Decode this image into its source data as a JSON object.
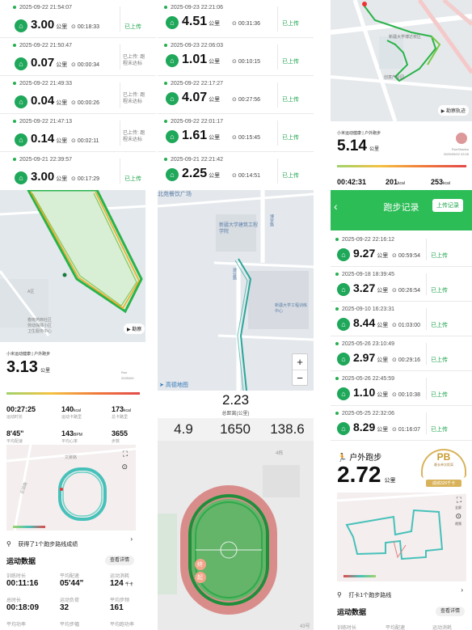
{
  "panel1": {
    "records": [
      {
        "datetime": "2025-09-22 21:54:07",
        "distance": "3.00",
        "unit": "公里",
        "duration": "00:18:33",
        "status": "已上传"
      },
      {
        "datetime": "2025-09-22 21:50:47",
        "distance": "0.07",
        "unit": "公里",
        "duration": "00:00:34",
        "status": "已上传: 跑程未达标"
      },
      {
        "datetime": "2025-09-22 21:49:33",
        "distance": "0.04",
        "unit": "公里",
        "duration": "00:00:26",
        "status": "已上传: 跑程未达标"
      },
      {
        "datetime": "2025-09-22 21:47:13",
        "distance": "0.14",
        "unit": "公里",
        "duration": "00:02:11",
        "status": "已上传: 跑程未达标"
      },
      {
        "datetime": "2025-09-21 22:39:57",
        "distance": "3.00",
        "unit": "公里",
        "duration": "00:17:29",
        "status": "已上传"
      }
    ]
  },
  "panel2": {
    "records": [
      {
        "datetime": "2025-09-23 22:21:06",
        "distance": "4.51",
        "unit": "公里",
        "duration": "00:31:36",
        "status": "已上传"
      },
      {
        "datetime": "2025-09-23 22:06:03",
        "distance": "1.01",
        "unit": "公里",
        "duration": "00:10:15",
        "status": "已上传"
      },
      {
        "datetime": "2025-09-22 22:17:27",
        "distance": "4.07",
        "unit": "公里",
        "duration": "00:27:56",
        "status": "已上传"
      },
      {
        "datetime": "2025-09-22 22:01:17",
        "distance": "1.61",
        "unit": "公里",
        "duration": "00:15:45",
        "status": "已上传"
      },
      {
        "datetime": "2025-09-21 22:21:42",
        "distance": "2.25",
        "unit": "公里",
        "duration": "00:14:51",
        "status": "已上传"
      }
    ]
  },
  "panel3": {
    "map_label": "新疆大学博达校区",
    "map_label2": "创意产业园",
    "track_button": "勘察轨迹",
    "app_name": "小米运动健康 | 户外跑步",
    "distance": "5.14",
    "unit": "公里",
    "user_name": "RunShadou",
    "user_date": "2025/09/22 22:05",
    "metrics": [
      {
        "value": "00:42:31",
        "label": ""
      },
      {
        "value": "201",
        "unit": "kcal",
        "label": ""
      },
      {
        "value": "253",
        "unit": "kcal",
        "label": ""
      }
    ]
  },
  "panel4": {
    "map_labels": [
      "春雨苑西社区",
      "劳动保障小区",
      "卫生服务中心",
      "A区"
    ],
    "track_button": "勘察",
    "app_name": "小米运动健康 | 户外跑步",
    "distance": "3.13",
    "unit": "公里",
    "user_name": "Ron",
    "user_date": "2025/09/",
    "metrics": [
      {
        "value": "00:27:25",
        "label": "运动时长"
      },
      {
        "value": "140",
        "unit": "kcal",
        "label": "运动卡路里"
      },
      {
        "value": "173",
        "unit": "kcal",
        "label": "总卡路里"
      },
      {
        "value": "8'45\"",
        "label": "平均配速"
      },
      {
        "value": "143",
        "unit": "BPM",
        "label": "平均心率"
      },
      {
        "value": "3655",
        "label": "步数"
      }
    ],
    "map_label_side": "近润路",
    "map_label_side2": "文聚路",
    "achievement": "获得了1个跑步路线成绩",
    "section_title": "运动数据",
    "details_button": "查看详情",
    "stats": [
      {
        "label": "训练时长",
        "value": "00:11:16"
      },
      {
        "label": "平均配速",
        "value": "05'44\""
      },
      {
        "label": "运动消耗",
        "value": "124",
        "unit": "千卡"
      },
      {
        "label": "总时长",
        "value": "00:18:09"
      },
      {
        "label": "运动负荷",
        "value": "32"
      },
      {
        "label": "平均步频",
        "value": "161"
      },
      {
        "label": "平均功率",
        "value": ""
      },
      {
        "label": "平均步幅",
        "value": ""
      },
      {
        "label": "平均跑功率",
        "value": ""
      }
    ]
  },
  "panel5": {
    "map_labels": [
      "北苑餐饮广场",
      "新疆大学建筑工程学院",
      "博学路",
      "新疆大学工程训练中心",
      "建业路"
    ],
    "zoom_in": "+",
    "zoom_out": "−",
    "map_brand": "高德地图",
    "total_distance": "2.23",
    "total_distance_label": "总距离(公里)",
    "stat_a": "4.9",
    "stat_b": "1650",
    "stat_c": "138.6",
    "track_label_a": "终",
    "track_label_b": "起",
    "building_label": "4栋",
    "building_label2": "43号"
  },
  "panel6": {
    "title": "跑步记录",
    "upload_button": "上传记录",
    "records": [
      {
        "datetime": "2025-09-22 22:16:12",
        "distance": "9.27",
        "unit": "公里",
        "duration": "00:59:54",
        "status": "已上传"
      },
      {
        "datetime": "2025-09-18 18:39:45",
        "distance": "3.27",
        "unit": "公里",
        "duration": "00:26:54",
        "status": "已上传"
      },
      {
        "datetime": "2025-09-10 16:23:31",
        "distance": "8.44",
        "unit": "公里",
        "duration": "01:03:00",
        "status": "已上传"
      },
      {
        "datetime": "2025-05-26 23:10:49",
        "distance": "2.97",
        "unit": "公里",
        "duration": "00:29:16",
        "status": "已上传"
      },
      {
        "datetime": "2025-05-26 22:45:59",
        "distance": "1.10",
        "unit": "公里",
        "duration": "00:10:38",
        "status": "已上传"
      },
      {
        "datetime": "2025-05-25 22:32:06",
        "distance": "8.29",
        "unit": "公里",
        "duration": "01:16:07",
        "status": "已上传"
      }
    ]
  },
  "panel7": {
    "title": "户外跑步",
    "distance": "2.72",
    "unit": "公里",
    "pb": "PB",
    "pb_sub": "最长单次距离",
    "pb_badge": "成绩326千卡",
    "checkin": "打卡1个跑步路线",
    "section_title": "运动数据",
    "details_button": "查看详情",
    "stats": [
      {
        "label": "训练时长"
      },
      {
        "label": "平均配速"
      },
      {
        "label": "运动消耗"
      }
    ],
    "map_btn1": "全屏",
    "map_btn2": "视频"
  }
}
